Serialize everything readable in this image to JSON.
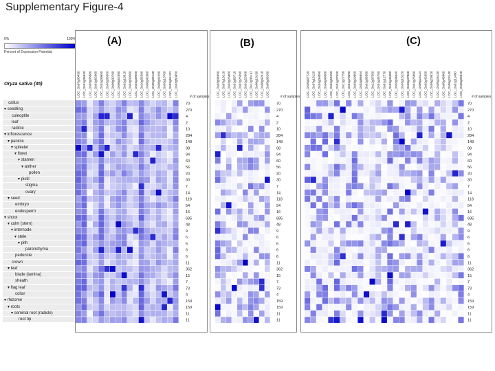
{
  "title": "Supplementary Figure-4",
  "legend": {
    "low_label": "0%",
    "high_label": "100%",
    "caption": "Percent of Expression Potential"
  },
  "species_label": "Oryza sativa (35)",
  "samples_header": "# of samples",
  "tissues": [
    {
      "label": "callus",
      "level": 0,
      "arrow": false,
      "count": 70
    },
    {
      "label": "seedling",
      "level": 0,
      "arrow": true,
      "count": 270
    },
    {
      "label": "coleoptile",
      "level": 1,
      "arrow": false,
      "count": 4
    },
    {
      "label": "leaf",
      "level": 1,
      "arrow": false,
      "count": 2
    },
    {
      "label": "radicle",
      "level": 1,
      "arrow": false,
      "count": 10
    },
    {
      "label": "inflorescence",
      "level": 0,
      "arrow": true,
      "count": 284
    },
    {
      "label": "panicle",
      "level": 1,
      "arrow": true,
      "count": 148
    },
    {
      "label": "spikelet",
      "level": 2,
      "arrow": true,
      "count": 98
    },
    {
      "label": "floret",
      "level": 3,
      "arrow": true,
      "count": 94
    },
    {
      "label": "stamen",
      "level": 4,
      "arrow": true,
      "count": 60
    },
    {
      "label": "anther",
      "level": 5,
      "arrow": true,
      "count": 56
    },
    {
      "label": "pollen",
      "level": 6,
      "arrow": false,
      "count": 20
    },
    {
      "label": "pistil",
      "level": 4,
      "arrow": true,
      "count": 30
    },
    {
      "label": "stigma",
      "level": 5,
      "arrow": false,
      "count": 7
    },
    {
      "label": "ovary",
      "level": 5,
      "arrow": false,
      "count": 14
    },
    {
      "label": "seed",
      "level": 1,
      "arrow": true,
      "count": 118
    },
    {
      "label": "embryo",
      "level": 2,
      "arrow": false,
      "count": 54
    },
    {
      "label": "endosperm",
      "level": 2,
      "arrow": false,
      "count": 16
    },
    {
      "label": "shoot",
      "level": 0,
      "arrow": true,
      "count": 685
    },
    {
      "label": "culm (stem)",
      "level": 1,
      "arrow": true,
      "count": 48
    },
    {
      "label": "internode",
      "level": 2,
      "arrow": true,
      "count": 9
    },
    {
      "label": "stele",
      "level": 3,
      "arrow": true,
      "count": 6
    },
    {
      "label": "pith",
      "level": 4,
      "arrow": true,
      "count": 6
    },
    {
      "label": "parenchyma",
      "level": 5,
      "arrow": false,
      "count": 6
    },
    {
      "label": "peduncle",
      "level": 2,
      "arrow": false,
      "count": 6
    },
    {
      "label": "crown",
      "level": 1,
      "arrow": false,
      "count": 11
    },
    {
      "label": "leaf",
      "level": 1,
      "arrow": true,
      "count": 362
    },
    {
      "label": "blade (lamina)",
      "level": 2,
      "arrow": false,
      "count": 15
    },
    {
      "label": "sheath",
      "level": 2,
      "arrow": false,
      "count": 7
    },
    {
      "label": "flag leaf",
      "level": 1,
      "arrow": true,
      "count": 73
    },
    {
      "label": "collar",
      "level": 2,
      "arrow": false,
      "count": 4
    },
    {
      "label": "rhizome",
      "level": 0,
      "arrow": true,
      "count": 159
    },
    {
      "label": "roots",
      "level": 1,
      "arrow": true,
      "count": 159
    },
    {
      "label": "seminal root (radicle)",
      "level": 2,
      "arrow": true,
      "count": 11
    },
    {
      "label": "root tip",
      "level": 3,
      "arrow": false,
      "count": 11
    }
  ],
  "colors": {
    "low": "#ffffff",
    "high": "#0000c8",
    "row_label_bg": "#ececec",
    "panel_border": "#888888"
  },
  "chart_data": [
    {
      "type": "heatmap",
      "panel_label": "(A)",
      "genes": [
        "LOC_Os07g00430",
        "LOC_Os01g06930",
        "LOC_Os03g06880",
        "LOC_Os01g62660",
        "LOC_Os02g39650",
        "LOC_Os03g06300",
        "LOC_Os06g00790",
        "LOC_Os06g52580",
        "LOC_Os02g16810",
        "LOC_Os04g39560",
        "LOC_Os04g39550",
        "LOC_Os10g35390",
        "LOC_Os06g42660",
        "LOC_Os05g09130",
        "LOC_Os06g41090",
        "LOC_Os03g15700",
        "LOC_Os03g61120",
        "LOC_Os03g60450"
      ],
      "value_scale": "percent of expression potential, 0-100",
      "values": "generated by script (approximate visual estimates)"
    },
    {
      "type": "heatmap",
      "panel_label": "(B)",
      "genes": [
        "LOC_Os03g04890",
        "LOC_Os07g19210",
        "LOC_Os03g26460",
        "LOC_Os01g65710",
        "LOC_Os07g25690",
        "LOC_Os01g25300",
        "LOC_Os12g38110",
        "LOC_Os06g19130",
        "LOC_Os08g42010",
        "LOC_Os05g06280"
      ],
      "value_scale": "percent of expression potential, 0-100",
      "values": "generated by script (approximate visual estimates)"
    },
    {
      "type": "heatmap",
      "panel_label": "(C)",
      "genes": [
        "LOC_Os05g07720",
        "LOC_Os07g18120",
        "LOC_Os04g09390",
        "LOC_Os04g49380",
        "LOC_Os02g54250",
        "LOC_Os01g07590",
        "LOC_Os12g27750",
        "LOC_Os01g70890",
        "LOC_Os03g29950",
        "LOC_Os03g66654",
        "LOC_Os01g06380",
        "LOC_Os12g37550",
        "LOC_Os01g45750",
        "LOC_Os01g12770",
        "LOC_Os03g49480",
        "LOC_Os03g04640",
        "LOC_Os03g16220",
        "LOC_Os06g47860",
        "LOC_Os01g25890",
        "LOC_Os06g23114",
        "LOC_Os02g42350",
        "LOC_Os09g23620",
        "LOC_Os05g28130",
        "LOC_Os05g46660",
        "LOC_Os06g23140",
        "LOC_Os01g11490",
        "LOC_Os05g09310"
      ],
      "value_scale": "percent of expression potential, 0-100",
      "values": "generated by script (approximate visual estimates)"
    }
  ]
}
